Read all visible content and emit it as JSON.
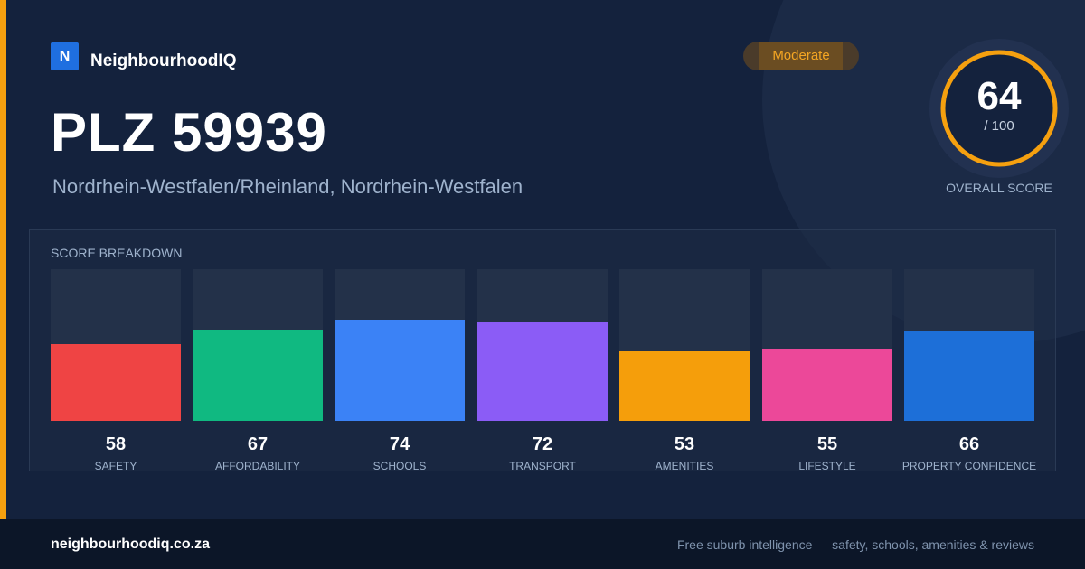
{
  "brand": {
    "logo_letter": "N",
    "name": "NeighbourhoodIQ"
  },
  "badge": {
    "label": "Moderate"
  },
  "header": {
    "title": "PLZ 59939",
    "subtitle": "Nordrhein-Westfalen/Rheinland, Nordrhein-Westfalen"
  },
  "overall": {
    "score": "64",
    "max_label": "/ 100",
    "max": 100,
    "label": "OVERALL SCORE",
    "ring_color": "#f5a00f"
  },
  "breakdown": {
    "title": "SCORE BREAKDOWN",
    "items": [
      {
        "label": "SAFETY",
        "score": "58",
        "value": 58,
        "color": "#ef4444"
      },
      {
        "label": "AFFORDABILITY",
        "score": "67",
        "value": 67,
        "color": "#10b981"
      },
      {
        "label": "SCHOOLS",
        "score": "74",
        "value": 74,
        "color": "#3b82f6"
      },
      {
        "label": "TRANSPORT",
        "score": "72",
        "value": 72,
        "color": "#8b5cf6"
      },
      {
        "label": "AMENITIES",
        "score": "53",
        "value": 53,
        "color": "#f59e0b"
      },
      {
        "label": "LIFESTYLE",
        "score": "55",
        "value": 55,
        "color": "#ec4899"
      },
      {
        "label": "PROPERTY CONFIDENCE",
        "score": "66",
        "value": 66,
        "color": "#1d6fd8"
      }
    ]
  },
  "footer": {
    "url": "neighbourhoodiq.co.za",
    "tagline": "Free suburb intelligence — safety, schools, amenities & reviews"
  },
  "colors": {
    "accent": "#f5a00f",
    "brand": "#1f6fe0",
    "background": "#14223d"
  }
}
